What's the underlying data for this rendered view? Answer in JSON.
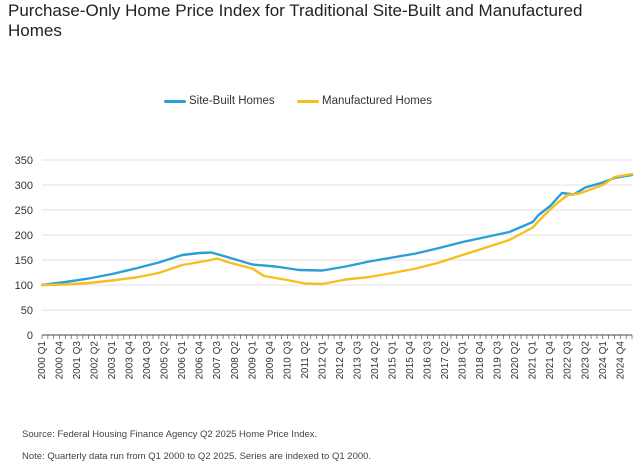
{
  "title": "Purchase-Only Home Price Index for Traditional Site-Built and Manufactured Homes",
  "legend": {
    "items": [
      {
        "label": "Site-Built Homes",
        "color": "#2a9fd6"
      },
      {
        "label": "Manufactured Homes",
        "color": "#f5bf1f"
      }
    ]
  },
  "source_note": "Source: Federal Housing Finance Agency Q2 2025 Home Price Index.",
  "data_note": "Note: Quarterly data run from Q1 2000 to Q2 2025. Series are indexed to Q1 2000.",
  "chart_data": {
    "type": "line",
    "title": "Purchase-Only Home Price Index for Traditional Site-Built and Manufactured Homes",
    "xlabel": "",
    "ylabel": "",
    "ylim": [
      0,
      350
    ],
    "yticks": [
      0,
      50,
      100,
      150,
      200,
      250,
      300,
      350
    ],
    "grid": true,
    "legend_position": "top-center",
    "x_start": "2000 Q1",
    "x_end": "2025 Q2",
    "x_tick_labels": [
      "2000 Q1",
      "2000 Q4",
      "2001 Q3",
      "2002 Q2",
      "2003 Q1",
      "2003 Q4",
      "2004 Q3",
      "2005 Q2",
      "2006 Q1",
      "2006 Q4",
      "2007 Q3",
      "2008 Q2",
      "2009 Q1",
      "2009 Q4",
      "2010 Q3",
      "2011 Q2",
      "2012 Q1",
      "2012 Q4",
      "2013 Q3",
      "2014 Q2",
      "2015 Q1",
      "2015 Q4",
      "2016 Q3",
      "2017 Q2",
      "2018 Q1",
      "2018 Q4",
      "2019 Q3",
      "2020 Q2",
      "2021 Q1",
      "2021 Q4",
      "2022 Q3",
      "2023 Q2",
      "2024 Q1",
      "2024 Q4"
    ],
    "series": [
      {
        "name": "Site-Built Homes",
        "color": "#2a9fd6",
        "points": [
          [
            "2000 Q1",
            100
          ],
          [
            "2001 Q1",
            106
          ],
          [
            "2002 Q1",
            113
          ],
          [
            "2003 Q1",
            122
          ],
          [
            "2004 Q1",
            133
          ],
          [
            "2005 Q1",
            145
          ],
          [
            "2006 Q1",
            160
          ],
          [
            "2006 Q4",
            164
          ],
          [
            "2007 Q2",
            165
          ],
          [
            "2008 Q1",
            155
          ],
          [
            "2009 Q1",
            141
          ],
          [
            "2010 Q1",
            137
          ],
          [
            "2011 Q1",
            130
          ],
          [
            "2012 Q1",
            129
          ],
          [
            "2013 Q1",
            137
          ],
          [
            "2014 Q1",
            147
          ],
          [
            "2015 Q1",
            155
          ],
          [
            "2016 Q1",
            163
          ],
          [
            "2017 Q1",
            174
          ],
          [
            "2018 Q1",
            186
          ],
          [
            "2019 Q1",
            196
          ],
          [
            "2020 Q1",
            206
          ],
          [
            "2021 Q1",
            226
          ],
          [
            "2021 Q2",
            240
          ],
          [
            "2021 Q4",
            258
          ],
          [
            "2022 Q2",
            284
          ],
          [
            "2022 Q4",
            281
          ],
          [
            "2023 Q2",
            295
          ],
          [
            "2024 Q1",
            305
          ],
          [
            "2024 Q3",
            314
          ],
          [
            "2025 Q2",
            320
          ]
        ]
      },
      {
        "name": "Manufactured Homes",
        "color": "#f5bf1f",
        "points": [
          [
            "2000 Q1",
            100
          ],
          [
            "2001 Q1",
            101
          ],
          [
            "2002 Q1",
            104
          ],
          [
            "2003 Q1",
            109
          ],
          [
            "2004 Q1",
            115
          ],
          [
            "2005 Q1",
            124
          ],
          [
            "2006 Q1",
            140
          ],
          [
            "2007 Q1",
            148
          ],
          [
            "2007 Q3",
            153
          ],
          [
            "2008 Q1",
            145
          ],
          [
            "2009 Q1",
            133
          ],
          [
            "2009 Q3",
            118
          ],
          [
            "2010 Q3",
            110
          ],
          [
            "2011 Q2",
            103
          ],
          [
            "2012 Q1",
            102
          ],
          [
            "2013 Q1",
            111
          ],
          [
            "2014 Q1",
            116
          ],
          [
            "2015 Q1",
            124
          ],
          [
            "2016 Q1",
            133
          ],
          [
            "2017 Q1",
            145
          ],
          [
            "2018 Q1",
            160
          ],
          [
            "2019 Q1",
            175
          ],
          [
            "2020 Q1",
            190
          ],
          [
            "2021 Q1",
            215
          ],
          [
            "2021 Q3",
            240
          ],
          [
            "2022 Q1",
            262
          ],
          [
            "2022 Q3",
            280
          ],
          [
            "2023 Q1",
            283
          ],
          [
            "2024 Q1",
            300
          ],
          [
            "2024 Q3",
            316
          ],
          [
            "2025 Q2",
            322
          ]
        ]
      }
    ]
  }
}
